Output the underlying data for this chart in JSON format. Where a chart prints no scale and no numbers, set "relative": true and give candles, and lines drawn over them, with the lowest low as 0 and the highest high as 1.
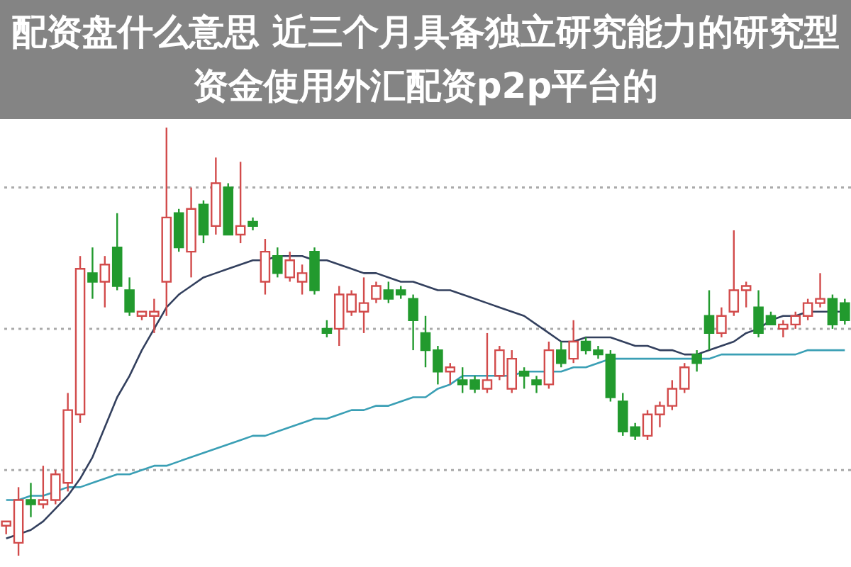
{
  "chart_data": {
    "type": "candlestick",
    "title": "配资盘什么意思 近三个月具备独立研究能力的研究型资金使用外汇配资p2p平台的",
    "relative": true,
    "categories": [
      null,
      null,
      null,
      null,
      null,
      null,
      null,
      null,
      null,
      null,
      null,
      null,
      null,
      null,
      null,
      null,
      null,
      null,
      null,
      null,
      null,
      null,
      null,
      null,
      null,
      null,
      null,
      null,
      null,
      null,
      null,
      null,
      null,
      null,
      null,
      null,
      null,
      null,
      null,
      null,
      null,
      null,
      null,
      null,
      null,
      null,
      null,
      null,
      null,
      null,
      null,
      null,
      null,
      null,
      null,
      null,
      null,
      null,
      null,
      null,
      null,
      null,
      null,
      null,
      null,
      null,
      null,
      null,
      null
    ],
    "ohlc": [
      [
        0.07,
        0.08,
        0.05,
        0.08
      ],
      [
        0.03,
        0.16,
        0,
        0.13
      ],
      [
        0.13,
        0.17,
        0.09,
        0.12
      ],
      [
        0.12,
        0.21,
        0.11,
        0.13
      ],
      [
        0.13,
        0.2,
        0.12,
        0.19
      ],
      [
        0.17,
        0.38,
        0.15,
        0.34
      ],
      [
        0.33,
        0.7,
        0.31,
        0.67
      ],
      [
        0.66,
        0.72,
        0.6,
        0.64
      ],
      [
        0.64,
        0.7,
        0.58,
        0.68
      ],
      [
        0.72,
        0.8,
        0.62,
        0.63
      ],
      [
        0.62,
        0.65,
        0.56,
        0.57
      ],
      [
        0.56,
        0.57,
        0.55,
        0.57
      ],
      [
        0.56,
        0.6,
        0.52,
        0.57
      ],
      [
        0.64,
        1,
        0.56,
        0.79
      ],
      [
        0.8,
        0.81,
        0.71,
        0.72
      ],
      [
        0.71,
        0.86,
        0.65,
        0.81
      ],
      [
        0.82,
        0.83,
        0.73,
        0.75
      ],
      [
        0.77,
        0.93,
        0.75,
        0.87
      ],
      [
        0.86,
        0.87,
        0.75,
        0.75
      ],
      [
        0.75,
        0.92,
        0.73,
        0.77
      ],
      [
        0.78,
        0.79,
        0.76,
        0.77
      ],
      [
        0.64,
        0.74,
        0.61,
        0.71
      ],
      [
        0.7,
        0.72,
        0.65,
        0.66
      ],
      [
        0.65,
        0.71,
        0.64,
        0.69
      ],
      [
        0.64,
        0.68,
        0.61,
        0.66
      ],
      [
        0.71,
        0.72,
        0.61,
        0.62
      ],
      [
        0.53,
        0.55,
        0.51,
        0.52
      ],
      [
        0.53,
        0.63,
        0.49,
        0.61
      ],
      [
        0.57,
        0.62,
        0.56,
        0.61
      ],
      [
        0.57,
        0.65,
        0.52,
        0.59
      ],
      [
        0.6,
        0.64,
        0.59,
        0.63
      ],
      [
        0.62,
        0.64,
        0.59,
        0.6
      ],
      [
        0.62,
        0.63,
        0.6,
        0.61
      ],
      [
        0.6,
        0.61,
        0.48,
        0.55
      ],
      [
        0.52,
        0.56,
        0.44,
        0.48
      ],
      [
        0.48,
        0.49,
        0.4,
        0.43
      ],
      [
        0.43,
        0.45,
        0.4,
        0.44
      ],
      [
        0.41,
        0.44,
        0.38,
        0.4
      ],
      [
        0.41,
        0.42,
        0.38,
        0.39
      ],
      [
        0.39,
        0.52,
        0.38,
        0.41
      ],
      [
        0.42,
        0.49,
        0.41,
        0.48
      ],
      [
        0.39,
        0.48,
        0.38,
        0.46
      ],
      [
        0.43,
        0.44,
        0.39,
        0.42
      ],
      [
        0.41,
        0.42,
        0.38,
        0.4
      ],
      [
        0.4,
        0.5,
        0.39,
        0.48
      ],
      [
        0.48,
        0.5,
        0.44,
        0.45
      ],
      [
        0.46,
        0.55,
        0.45,
        0.5
      ],
      [
        0.5,
        0.51,
        0.47,
        0.48
      ],
      [
        0.48,
        0.49,
        0.46,
        0.47
      ],
      [
        0.47,
        0.48,
        0.36,
        0.37
      ],
      [
        0.36,
        0.38,
        0.28,
        0.29
      ],
      [
        0.3,
        0.31,
        0.27,
        0.28
      ],
      [
        0.28,
        0.34,
        0.27,
        0.33
      ],
      [
        0.33,
        0.36,
        0.3,
        0.35
      ],
      [
        0.35,
        0.41,
        0.34,
        0.39
      ],
      [
        0.39,
        0.45,
        0.38,
        0.44
      ],
      [
        0.47,
        0.48,
        0.43,
        0.45
      ],
      [
        0.56,
        0.62,
        0.48,
        0.52
      ],
      [
        0.52,
        0.58,
        0.51,
        0.56
      ],
      [
        0.57,
        0.76,
        0.56,
        0.62
      ],
      [
        0.62,
        0.64,
        0.58,
        0.63
      ],
      [
        0.58,
        0.62,
        0.51,
        0.52
      ],
      [
        0.56,
        0.57,
        0.54,
        0.54
      ],
      [
        0.53,
        0.55,
        0.51,
        0.54
      ],
      [
        0.54,
        0.57,
        0.53,
        0.56
      ],
      [
        0.56,
        0.6,
        0.55,
        0.59
      ],
      [
        0.59,
        0.66,
        0.58,
        0.6
      ],
      [
        0.6,
        0.61,
        0.53,
        0.54
      ],
      [
        0.59,
        0.6,
        0.54,
        0.55
      ]
    ],
    "colors": [
      "#d24b4b",
      "#d24b4b",
      "#229a2e",
      "#d24b4b",
      "#d24b4b",
      "#d24b4b",
      "#d24b4b",
      "#229a2e",
      "#d24b4b",
      "#229a2e",
      "#229a2e",
      "#d24b4b",
      "#d24b4b",
      "#d24b4b",
      "#229a2e",
      "#d24b4b",
      "#229a2e",
      "#d24b4b",
      "#229a2e",
      "#d24b4b",
      "#229a2e",
      "#d24b4b",
      "#229a2e",
      "#d24b4b",
      "#d24b4b",
      "#229a2e",
      "#229a2e",
      "#d24b4b",
      "#d24b4b",
      "#d24b4b",
      "#d24b4b",
      "#229a2e",
      "#229a2e",
      "#229a2e",
      "#229a2e",
      "#229a2e",
      "#d24b4b",
      "#229a2e",
      "#229a2e",
      "#d24b4b",
      "#d24b4b",
      "#d24b4b",
      "#229a2e",
      "#229a2e",
      "#d24b4b",
      "#229a2e",
      "#d24b4b",
      "#229a2e",
      "#229a2e",
      "#229a2e",
      "#229a2e",
      "#229a2e",
      "#d24b4b",
      "#d24b4b",
      "#d24b4b",
      "#d24b4b",
      "#229a2e",
      "#229a2e",
      "#d24b4b",
      "#d24b4b",
      "#d24b4b",
      "#229a2e",
      "#229a2e",
      "#d24b4b",
      "#d24b4b",
      "#d24b4b",
      "#d24b4b",
      "#229a2e",
      "#229a2e"
    ],
    "series": [
      {
        "type": "line",
        "color": "#3a9fb5",
        "values": [
          0.13,
          0.13,
          0.14,
          0.14,
          0.15,
          0.16,
          0.16,
          0.17,
          0.18,
          0.19,
          0.19,
          0.2,
          0.21,
          0.21,
          0.22,
          0.23,
          0.24,
          0.25,
          0.26,
          0.27,
          0.28,
          0.28,
          0.29,
          0.3,
          0.31,
          0.32,
          0.32,
          0.33,
          0.34,
          0.34,
          0.35,
          0.35,
          0.36,
          0.37,
          0.37,
          0.39,
          0.4,
          0.42,
          0.42,
          0.42,
          0.42,
          0.42,
          0.43,
          0.43,
          0.43,
          0.43,
          0.44,
          0.44,
          0.45,
          0.46,
          0.46,
          0.46,
          0.46,
          0.46,
          0.46,
          0.46,
          0.46,
          0.46,
          0.47,
          0.47,
          0.47,
          0.47,
          0.47,
          0.47,
          0.47,
          0.48,
          0.48,
          0.48,
          0.48
        ]
      },
      {
        "type": "line",
        "color": "#33405e",
        "values": [
          0.04,
          0.05,
          0.06,
          0.08,
          0.11,
          0.14,
          0.18,
          0.23,
          0.3,
          0.37,
          0.42,
          0.48,
          0.53,
          0.58,
          0.61,
          0.63,
          0.65,
          0.66,
          0.67,
          0.68,
          0.69,
          0.69,
          0.7,
          0.7,
          0.7,
          0.69,
          0.69,
          0.68,
          0.67,
          0.66,
          0.66,
          0.65,
          0.64,
          0.64,
          0.63,
          0.62,
          0.62,
          0.61,
          0.6,
          0.59,
          0.58,
          0.57,
          0.56,
          0.54,
          0.52,
          0.5,
          0.5,
          0.51,
          0.51,
          0.51,
          0.5,
          0.49,
          0.49,
          0.48,
          0.48,
          0.47,
          0.47,
          0.48,
          0.49,
          0.5,
          0.52,
          0.53,
          0.55,
          0.56,
          0.56,
          0.57,
          0.57,
          0.57,
          0.57
        ]
      }
    ],
    "ref_lines": [
      {
        "axis": "y",
        "value": 0.86,
        "color": "#aaaaaa",
        "line_style": "dotted"
      },
      {
        "axis": "y",
        "value": 0.53,
        "color": "#aaaaaa",
        "line_style": "dotted"
      },
      {
        "axis": "y",
        "value": 0.2,
        "color": "#aaaaaa",
        "line_style": "dotted"
      }
    ]
  }
}
